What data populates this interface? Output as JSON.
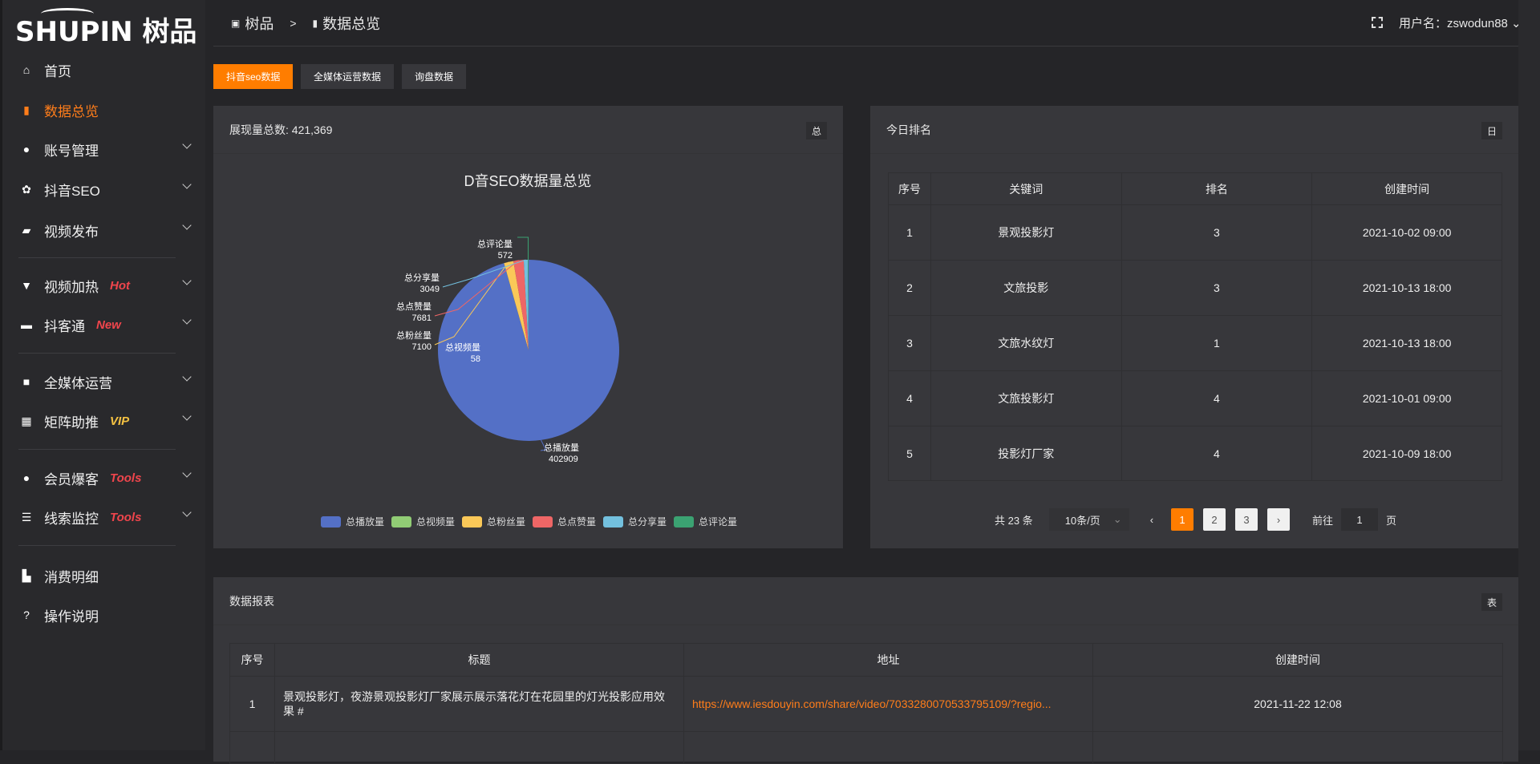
{
  "logo": {
    "text": "SHUPIN",
    "cn": "树品"
  },
  "sidebar": {
    "items": [
      {
        "label": "首页",
        "icon": "home-icon",
        "glyph": "⌂"
      },
      {
        "label": "数据总览",
        "icon": "bar-chart-icon",
        "glyph": "▮",
        "active": true
      },
      {
        "label": "账号管理",
        "icon": "user-icon",
        "glyph": "●",
        "chevron": true
      },
      {
        "label": "抖音SEO",
        "icon": "gear-icon",
        "glyph": "✿",
        "chevron": true
      },
      {
        "label": "视频发布",
        "icon": "camera-icon",
        "glyph": "▰",
        "chevron": true
      },
      {
        "label": "视频加热",
        "icon": "billboard-icon",
        "glyph": "▼",
        "badge": "Hot",
        "badge_color": "#f0454c",
        "chevron": true
      },
      {
        "label": "抖客通",
        "icon": "chat-icon",
        "glyph": "▬",
        "badge": "New",
        "badge_color": "#f0454c",
        "chevron": true
      },
      {
        "label": "全媒体运营",
        "icon": "monitor-icon",
        "glyph": "■",
        "chevron": true
      },
      {
        "label": "矩阵助推",
        "icon": "grid-icon",
        "glyph": "▦",
        "badge": "VIP",
        "badge_color": "#f5c242",
        "chevron": true
      },
      {
        "label": "会员爆客",
        "icon": "user-icon",
        "glyph": "●",
        "badge": "Tools",
        "badge_color": "#f0454c",
        "chevron": true
      },
      {
        "label": "线索监控",
        "icon": "sliders-icon",
        "glyph": "☰",
        "badge": "Tools",
        "badge_color": "#f0454c",
        "chevron": true
      },
      {
        "label": "消费明细",
        "icon": "wallet-icon",
        "glyph": "▙"
      },
      {
        "label": "操作说明",
        "icon": "help-icon",
        "glyph": "?"
      }
    ]
  },
  "header": {
    "breadcrumb": [
      "树品",
      ">",
      "数据总览"
    ],
    "username": "用户名：zswodun88"
  },
  "tabs": [
    {
      "label": "抖音seo数据",
      "active": true
    },
    {
      "label": "全媒体运营数据"
    },
    {
      "label": "询盘数据"
    }
  ],
  "card_chart": {
    "header": "展现量总数: 421,369",
    "tag": "总"
  },
  "chart_data": {
    "type": "pie",
    "title": "D音SEO数据量总览",
    "legend": "bottom",
    "slices": [
      {
        "name": "总播放量",
        "value": 402909,
        "color": "#5470c6"
      },
      {
        "name": "总视频量",
        "value": 58,
        "color": "#91cc75"
      },
      {
        "name": "总粉丝量",
        "value": 7100,
        "color": "#fac858"
      },
      {
        "name": "总点赞量",
        "value": 7681,
        "color": "#ee6666"
      },
      {
        "name": "总分享量",
        "value": 3049,
        "color": "#73c0de"
      },
      {
        "name": "总评论量",
        "value": 572,
        "color": "#3ba272"
      }
    ]
  },
  "ranking": {
    "header": "今日排名",
    "tag": "日",
    "columns": [
      "序号",
      "关键词",
      "排名",
      "创建时间"
    ],
    "rows": [
      [
        "1",
        "景观投影灯",
        "3",
        "2021-10-02 09:00"
      ],
      [
        "2",
        "文旅投影",
        "3",
        "2021-10-13 18:00"
      ],
      [
        "3",
        "文旅水纹灯",
        "1",
        "2021-10-13 18:00"
      ],
      [
        "4",
        "文旅投影灯",
        "4",
        "2021-10-01 09:00"
      ],
      [
        "5",
        "投影灯厂家",
        "4",
        "2021-10-09 18:00"
      ]
    ],
    "pagination": {
      "total": "共 23 条",
      "page_size": "10条/页",
      "pages": [
        "1",
        "2",
        "3"
      ],
      "current": "1",
      "goto_label": "前往",
      "goto_value": "1",
      "page_unit": "页"
    }
  },
  "report": {
    "header": "数据报表",
    "tag": "表",
    "columns": [
      "序号",
      "标题",
      "地址",
      "创建时间"
    ],
    "rows": [
      [
        "1",
        "景观投影灯，夜游景观投影灯厂家展示展示落花灯在花园里的灯光投影应用效果 #",
        "https://www.iesdouyin.com/share/video/7033280070533795109/?regio...",
        "2021-11-22 12:08"
      ]
    ]
  },
  "colors": {
    "accent": "#ff7d00",
    "link": "#ff7d1a"
  }
}
